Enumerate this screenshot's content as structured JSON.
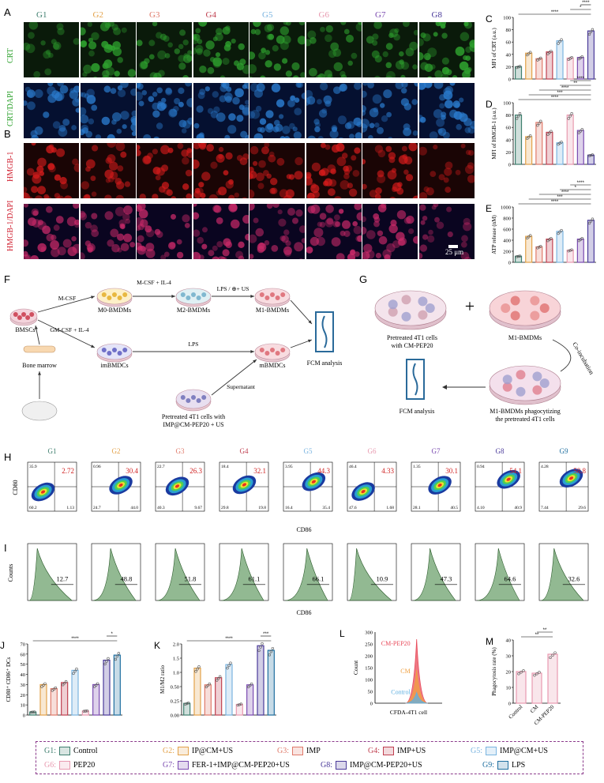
{
  "panels": {
    "A": "A",
    "B": "B",
    "C": "C",
    "D": "D",
    "E": "E",
    "F": "F",
    "G": "G",
    "H": "H",
    "I": "I",
    "J": "J",
    "K": "K",
    "L": "L",
    "M": "M"
  },
  "groups8": [
    "G1",
    "G2",
    "G3",
    "G4",
    "G5",
    "G6",
    "G7",
    "G8"
  ],
  "groups9": [
    "G1",
    "G2",
    "G3",
    "G4",
    "G5",
    "G6",
    "G7",
    "G8",
    "G9"
  ],
  "group_colors": [
    "#3f7f6f",
    "#e3a24a",
    "#e07a6a",
    "#c04050",
    "#7ab4e0",
    "#e89ab0",
    "#7a4ab0",
    "#4a3a9a",
    "#1f6fa0"
  ],
  "row_labels": {
    "crt": "CRT",
    "crt_dapi": "CRT/DAPI",
    "hmgb": "HMGB-1",
    "hmgb_dapi": "HMGB-1/DAPI"
  },
  "scale_bar": "25 μm",
  "panelC": {
    "ylabel": "MFI of CRT (a.u.)",
    "ticks": [
      "0",
      "20",
      "40",
      "60",
      "80",
      "100"
    ],
    "sig": [
      "****",
      "*",
      "****"
    ]
  },
  "panelD": {
    "ylabel": "MFI of HMGB-1 (a.u.)",
    "ticks": [
      "0",
      "20",
      "40",
      "60",
      "80",
      "100"
    ],
    "sig": [
      "****",
      "***",
      "****",
      "**",
      "****"
    ]
  },
  "panelE": {
    "ylabel": "ATP release (nM)",
    "ticks": [
      "0",
      "200",
      "400",
      "600",
      "800",
      "1000"
    ],
    "sig": [
      "****",
      "***",
      "****",
      "*",
      "****"
    ]
  },
  "panelF": {
    "bmscs": "BMSCs",
    "bone": "Bone marrow",
    "mcsf": "M-CSF",
    "mcsf_il4": "M-CSF + IL-4",
    "m0": "M0-BMDMs",
    "m2": "M2-BMDMs",
    "m1": "M1-BMDMs",
    "lps_us": "LPS / ⊕+ US",
    "gmcsf": "GM-CSF + IL-4",
    "imb": "imBMDCs",
    "lps": "LPS",
    "mb": "mBMDCs",
    "fcm": "FCM analysis",
    "supernatant": "Supernatant",
    "pre1": "Pretreated 4T1 cells with",
    "pre2": "IMP@CM-PEP20 + US"
  },
  "panelG": {
    "pre1": "Pretreated 4T1 cells",
    "pre2": "with CM-PEP20",
    "plus": "+",
    "m1": "M1-BMDMs",
    "coinc": "Co-incubation",
    "fcm": "FCM analysis",
    "phag1": "M1-BMDMs phagocytizing",
    "phag2": "the pretreated 4T1 cells"
  },
  "panelH": {
    "ylabel": "CD80",
    "xlabel": "CD86",
    "q2": [
      "2.72",
      "30.4",
      "26.3",
      "32.1",
      "44.3",
      "4.33",
      "30.1",
      "54.1",
      "58.8"
    ],
    "q1": [
      "35.9",
      "0.96",
      "22.7",
      "18.4",
      "3.95",
      "46.4",
      "1.35",
      "0.94",
      "4.28"
    ],
    "q3": [
      "60.2",
      "24.7",
      "40.3",
      "29.8",
      "16.4",
      "47.6",
      "28.1",
      "4.10",
      "7.44"
    ],
    "q4": [
      "1.13",
      "44.0",
      "9.67",
      "19.8",
      "35.4",
      "1.68",
      "40.5",
      "40.9",
      "29.6"
    ]
  },
  "panelI": {
    "ylabel": "Counts",
    "xlabel": "CD86",
    "values": [
      "12.7",
      "48.8",
      "51.8",
      "61.1",
      "66.1",
      "10.9",
      "47.3",
      "64.6",
      "32.6"
    ]
  },
  "panelJ": {
    "ylabel": "CD80⁺ CD86⁺ DCs",
    "ticks": [
      "0",
      "10",
      "20",
      "30",
      "40",
      "50",
      "60",
      "70"
    ],
    "sig": [
      "****",
      "*"
    ]
  },
  "panelK": {
    "ylabel": "M1/M2 ratio",
    "ticks": [
      "0.00",
      "0.25",
      "0.50",
      "1.0",
      "1.5",
      "2.0"
    ],
    "sig": [
      "****",
      "***"
    ]
  },
  "panelL": {
    "ylabel": "Count",
    "xlabel": "CFDA-4T1 cell",
    "ticks": [
      "0",
      "50",
      "100",
      "150",
      "200",
      "250",
      "300"
    ],
    "curves": [
      "CM-PEP20",
      "CM",
      "Control"
    ]
  },
  "panelM": {
    "ylabel": "Phagocytosis rate (%)",
    "ticks": [
      "0",
      "10",
      "20",
      "30",
      "40"
    ],
    "cats": [
      "Control",
      "CM",
      "CM-PEP20"
    ],
    "sig": [
      "**",
      "**"
    ]
  },
  "legend": [
    {
      "code": "G1:",
      "name": "Control"
    },
    {
      "code": "G2:",
      "name": "IP@CM+US"
    },
    {
      "code": "G3:",
      "name": "IMP"
    },
    {
      "code": "G4:",
      "name": "IMP+US"
    },
    {
      "code": "G5:",
      "name": "IMP@CM+US"
    },
    {
      "code": "G6:",
      "name": "PEP20"
    },
    {
      "code": "G7:",
      "name": "FER-1+IMP@CM-PEP20+US"
    },
    {
      "code": "G8:",
      "name": "IMP@CM-PEP20+US"
    },
    {
      "code": "G9:",
      "name": "LPS"
    }
  ],
  "chart_data": [
    {
      "type": "bar",
      "title": "",
      "ylabel": "MFI of CRT (a.u.)",
      "categories": [
        "G1",
        "G2",
        "G3",
        "G4",
        "G5",
        "G6",
        "G7",
        "G8"
      ],
      "values": [
        20,
        42,
        33,
        44,
        62,
        34,
        35,
        78
      ],
      "ylim": [
        0,
        100
      ]
    },
    {
      "type": "bar",
      "title": "",
      "ylabel": "MFI of HMGB-1 (a.u.)",
      "categories": [
        "G1",
        "G2",
        "G3",
        "G4",
        "G5",
        "G6",
        "G7",
        "G8"
      ],
      "values": [
        80,
        45,
        68,
        52,
        35,
        80,
        55,
        15
      ],
      "ylim": [
        0,
        100
      ]
    },
    {
      "type": "bar",
      "title": "",
      "ylabel": "ATP release (nM)",
      "categories": [
        "G1",
        "G2",
        "G3",
        "G4",
        "G5",
        "G6",
        "G7",
        "G8"
      ],
      "values": [
        110,
        470,
        280,
        420,
        560,
        220,
        420,
        760
      ],
      "ylim": [
        0,
        1000
      ]
    },
    {
      "type": "bar",
      "title": "",
      "ylabel": "CD80⁺ CD86⁺ DCs",
      "categories": [
        "G1",
        "G2",
        "G3",
        "G4",
        "G5",
        "G6",
        "G7",
        "G8",
        "G9"
      ],
      "values": [
        3,
        30,
        26,
        32,
        44,
        4,
        30,
        54,
        59
      ],
      "ylim": [
        0,
        70
      ]
    },
    {
      "type": "bar",
      "title": "",
      "ylabel": "M1/M2 ratio",
      "categories": [
        "G1",
        "G2",
        "G3",
        "G4",
        "G5",
        "G6",
        "G7",
        "G8",
        "G9"
      ],
      "values": [
        0.33,
        1.32,
        0.85,
        1.05,
        1.42,
        0.3,
        0.85,
        1.95,
        1.82
      ],
      "ylim": [
        0,
        2.0
      ]
    },
    {
      "type": "bar",
      "title": "",
      "ylabel": "Phagocytosis rate (%)",
      "categories": [
        "Control",
        "CM",
        "CM-PEP20"
      ],
      "values": [
        20,
        19,
        31
      ],
      "ylim": [
        0,
        40
      ]
    }
  ]
}
